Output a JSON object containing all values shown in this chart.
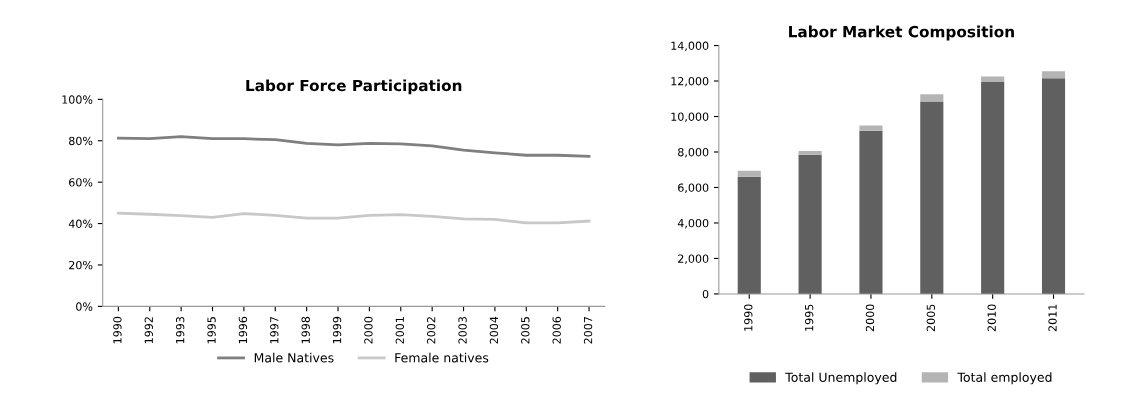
{
  "chart_data": [
    {
      "type": "line",
      "title": "Labor Force Participation",
      "categories": [
        "1990",
        "1992",
        "1993",
        "1995",
        "1996",
        "1997",
        "1998",
        "1999",
        "2000",
        "2001",
        "2002",
        "2003",
        "2004",
        "2005",
        "2006",
        "2007"
      ],
      "series": [
        {
          "name": "Male Natives",
          "color": "#7f7f7f",
          "values": [
            81.3,
            81,
            82,
            81,
            81,
            80.5,
            78.7,
            78,
            78.7,
            78.5,
            77.5,
            75.5,
            74.2,
            73,
            73,
            72.5
          ]
        },
        {
          "name": "Female natives",
          "color": "#c8c8c8",
          "values": [
            45,
            44.5,
            43.8,
            43,
            44.8,
            44,
            42.6,
            42.6,
            44,
            44.3,
            43.5,
            42.3,
            42,
            40.3,
            40.3,
            41.2
          ]
        }
      ],
      "ylim": [
        0,
        100
      ],
      "yticks": [
        {
          "value": 0,
          "label": "0%"
        },
        {
          "value": 20,
          "label": "20%"
        },
        {
          "value": 40,
          "label": "40%"
        },
        {
          "value": 60,
          "label": "60%"
        },
        {
          "value": 80,
          "label": "80%"
        },
        {
          "value": 100,
          "label": "100%"
        }
      ],
      "legend": "bottom",
      "grid": false,
      "marker": "none",
      "line_style": "solid"
    },
    {
      "type": "bar",
      "title": "Labor Market Composition",
      "stacked": true,
      "categories": [
        "1990",
        "1995",
        "2000",
        "2005",
        "2010",
        "2011"
      ],
      "series": [
        {
          "name": "Total Unemployed",
          "color": "#606060",
          "values": [
            6600,
            7850,
            9200,
            10850,
            11950,
            12150
          ]
        },
        {
          "name": "Total employed",
          "color": "#b4b4b4",
          "values": [
            350,
            200,
            300,
            400,
            300,
            400
          ]
        }
      ],
      "ylim": [
        0,
        14000
      ],
      "yticks": [
        {
          "value": 0,
          "label": "0"
        },
        {
          "value": 2000,
          "label": "2,000"
        },
        {
          "value": 4000,
          "label": "4,000"
        },
        {
          "value": 6000,
          "label": "6,000"
        },
        {
          "value": 8000,
          "label": "8,000"
        },
        {
          "value": 10000,
          "label": "10,000"
        },
        {
          "value": 12000,
          "label": "12,000"
        },
        {
          "value": 14000,
          "label": "14,000"
        }
      ],
      "legend": "bottom",
      "grid": false
    }
  ]
}
